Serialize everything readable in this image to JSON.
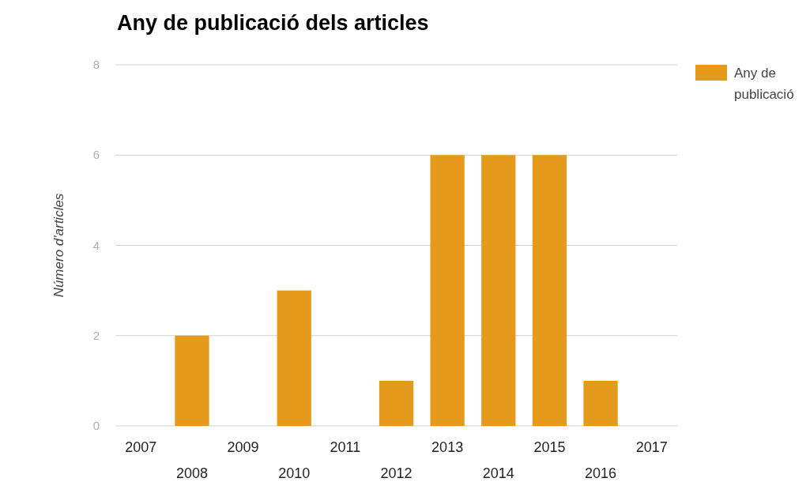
{
  "chart_data": {
    "type": "bar",
    "title": "Any de publicació dels articles",
    "ylabel": "Número d'articles",
    "categories": [
      "2007",
      "2008",
      "2009",
      "2010",
      "2011",
      "2012",
      "2013",
      "2014",
      "2015",
      "2016",
      "2017"
    ],
    "series": [
      {
        "name": "Any de publicació",
        "color": "#e69a1b",
        "values": [
          0,
          2,
          0,
          3,
          0,
          1,
          6,
          6,
          6,
          1,
          0
        ]
      }
    ],
    "ylim": [
      0,
      8
    ],
    "yticks": [
      0,
      2,
      4,
      6,
      8
    ],
    "grid": "y",
    "legend": "right"
  }
}
